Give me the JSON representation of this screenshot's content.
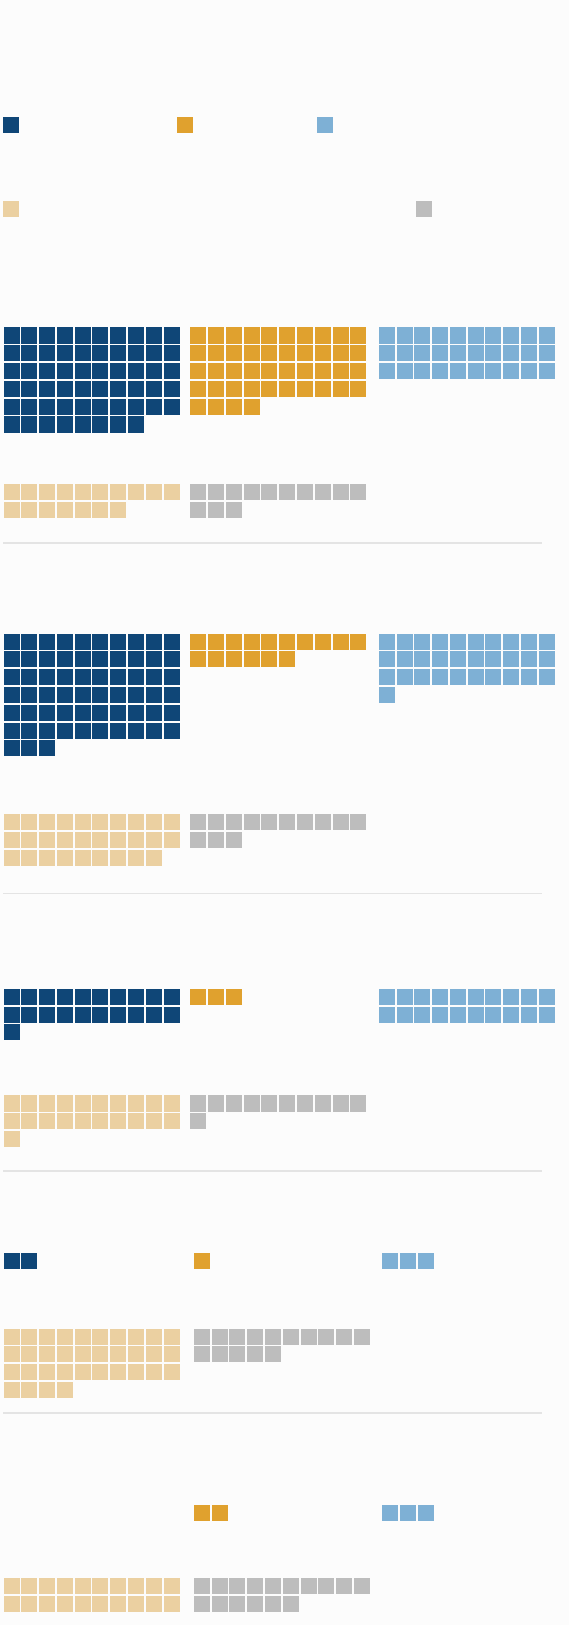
{
  "colors": {
    "category_a": "#0f4677",
    "category_b": "#e0a12e",
    "category_c": "#7eb0d5",
    "category_d": "#ebd0a1",
    "category_e": "#bdbdbd",
    "divider": "#cccccc",
    "background": "#fcfcfc"
  },
  "legend": {
    "entries": [
      {
        "key": "category_a",
        "label": ""
      },
      {
        "key": "category_b",
        "label": ""
      },
      {
        "key": "category_c",
        "label": ""
      },
      {
        "key": "category_d",
        "label": ""
      },
      {
        "key": "category_e",
        "label": ""
      }
    ]
  },
  "chart_data": {
    "type": "waffle",
    "title": "",
    "unit_per_square": 1,
    "squares_per_row": 10,
    "panels": [
      {
        "label": "",
        "values": {
          "category_a": 58,
          "category_b": 44,
          "category_c": 30,
          "category_d": 17,
          "category_e": 13
        }
      },
      {
        "label": "",
        "values": {
          "category_a": 63,
          "category_b": 16,
          "category_c": 31,
          "category_d": 29,
          "category_e": 13
        }
      },
      {
        "label": "",
        "values": {
          "category_a": 21,
          "category_b": 3,
          "category_c": 20,
          "category_d": 21,
          "category_e": 11
        }
      },
      {
        "label": "",
        "values": {
          "category_a": 2,
          "category_b": 1,
          "category_c": 3,
          "category_d": 34,
          "category_e": 15
        }
      },
      {
        "label": "",
        "values": {
          "category_a": 0,
          "category_b": 2,
          "category_c": 3,
          "category_d": 20,
          "category_e": 16
        }
      }
    ]
  }
}
